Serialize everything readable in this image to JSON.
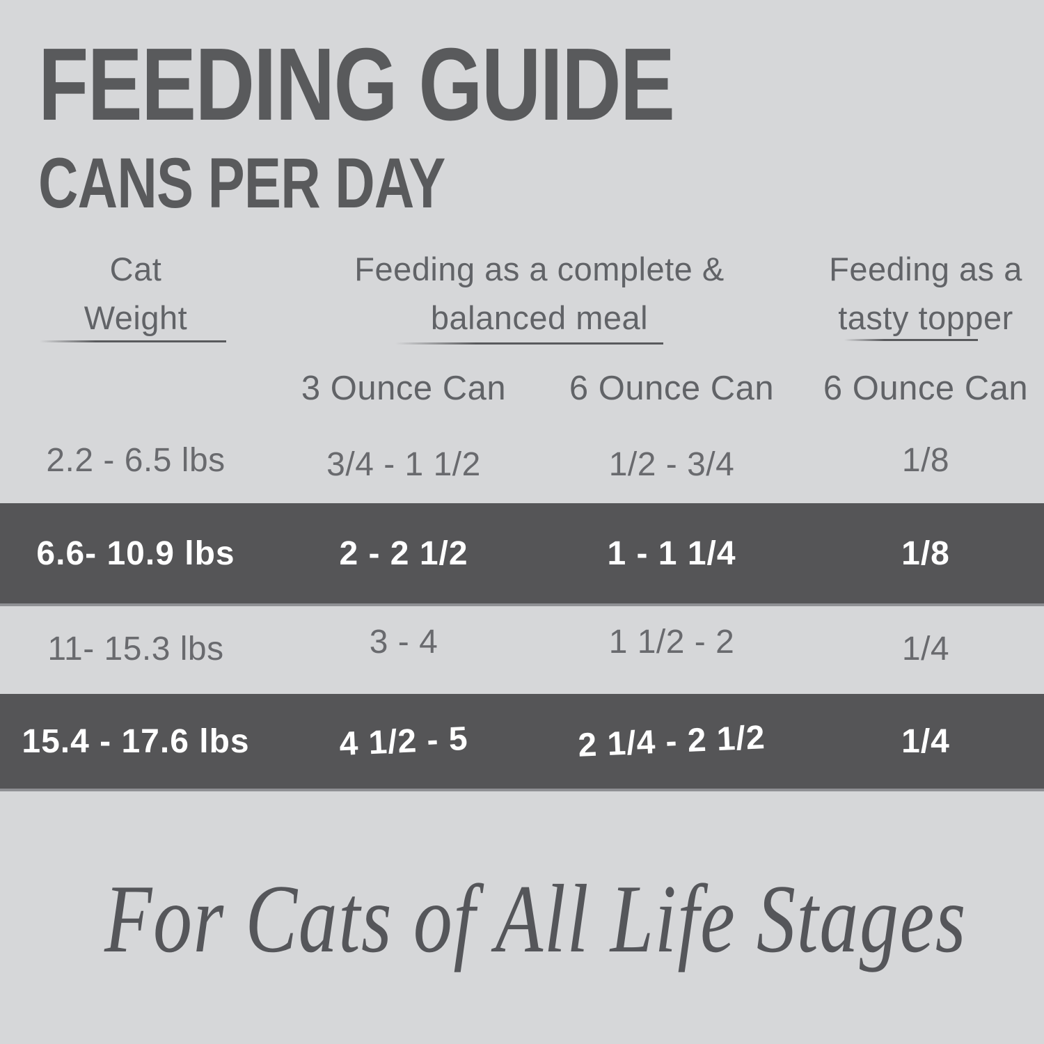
{
  "title": "FEEDING GUIDE",
  "subtitle": "CANS PER DAY",
  "table": {
    "header": {
      "weight": {
        "line1": "Cat",
        "line2": "Weight"
      },
      "complete_meal_group": {
        "line1": "Feeding as a complete &",
        "line2": "balanced meal"
      },
      "topper_group": {
        "line1": "Feeding as a",
        "line2": "tasty topper"
      }
    },
    "subheaders": [
      "3 Ounce Can",
      "6 Ounce Can",
      "6 Ounce Can"
    ],
    "rows": [
      {
        "weight": "2.2 - 6.5 lbs",
        "can3": "3/4 - 1 1/2",
        "can6": "1/2 - 3/4",
        "topper": "1/8",
        "highlighted": false
      },
      {
        "weight": "6.6- 10.9 lbs",
        "can3": "2 - 2 1/2",
        "can6": "1 - 1 1/4",
        "topper": "1/8",
        "highlighted": true
      },
      {
        "weight": "11- 15.3 lbs",
        "can3": "3 - 4",
        "can6": "1 1/2 - 2",
        "topper": "1/4",
        "highlighted": false
      },
      {
        "weight": "15.4 - 17.6 lbs",
        "can3": "4 1/2 - 5",
        "can6": "2 1/4 - 2 1/2",
        "topper": "1/4",
        "highlighted": true
      }
    ]
  },
  "footer": {
    "tagline": "For Cats of All Life Stages"
  },
  "colors": {
    "background": "#d6d7d9",
    "highlight_band": "#555557",
    "band_edge": "#8f9094",
    "title_text": "#595a5c",
    "table_text": "#696a6e",
    "band_text": "#ffffff",
    "tagline_text": "#55565a"
  }
}
